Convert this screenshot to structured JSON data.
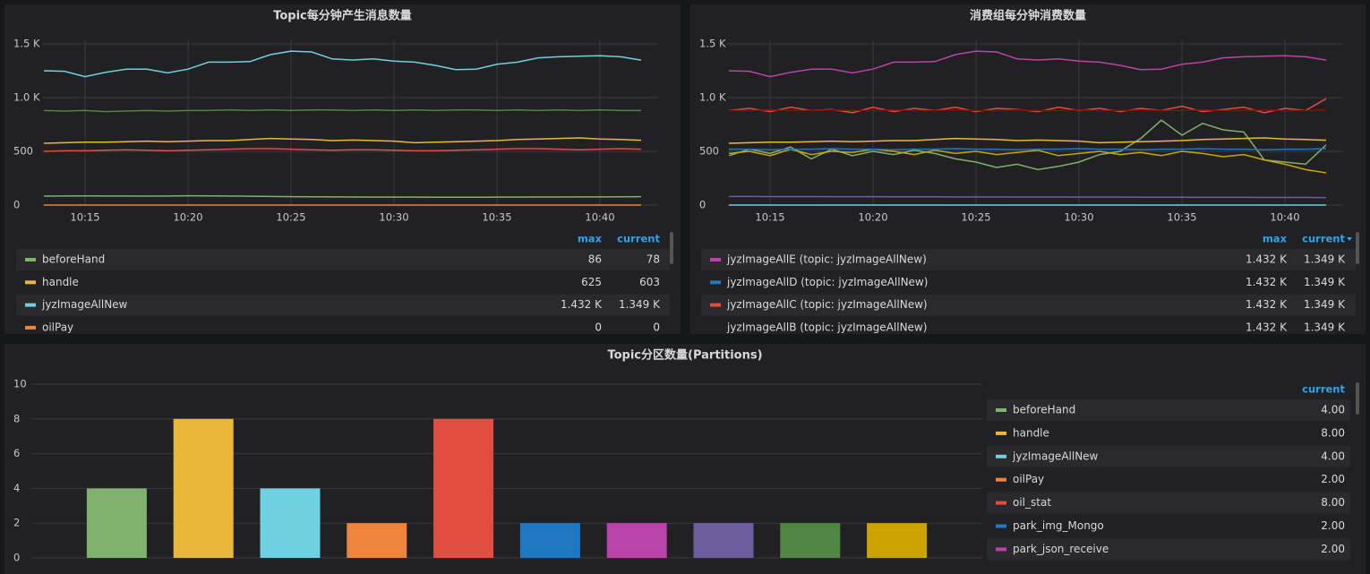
{
  "chart_data": [
    {
      "type": "line",
      "title": "Topic每分钟产生消息数量",
      "x": [
        "10:13",
        "10:14",
        "10:15",
        "10:16",
        "10:17",
        "10:18",
        "10:19",
        "10:20",
        "10:21",
        "10:22",
        "10:23",
        "10:24",
        "10:25",
        "10:26",
        "10:27",
        "10:28",
        "10:29",
        "10:30",
        "10:31",
        "10:32",
        "10:33",
        "10:34",
        "10:35",
        "10:36",
        "10:37",
        "10:38",
        "10:39",
        "10:40",
        "10:41",
        "10:42"
      ],
      "xticks": [
        "10:15",
        "10:20",
        "10:25",
        "10:30",
        "10:35",
        "10:40"
      ],
      "ylim": [
        0,
        1500
      ],
      "yticks": [
        0,
        500,
        {
          "value": 1000,
          "label": "1.0 K"
        },
        {
          "value": 1500,
          "label": "1.5 K"
        }
      ],
      "legend_columns": [
        "max",
        "current"
      ],
      "series": [
        {
          "name": "beforeHand",
          "color": "#7eb26d",
          "max": 86,
          "current": 78,
          "values": [
            83,
            84,
            85,
            84,
            84,
            83,
            84,
            86,
            85,
            84,
            82,
            80,
            78,
            77,
            76,
            75,
            74,
            74,
            74,
            73,
            73,
            73,
            74,
            74,
            75,
            75,
            76,
            76,
            77,
            78
          ]
        },
        {
          "name": "handle",
          "color": "#eab839",
          "max": 625,
          "current": 603,
          "values": [
            575,
            580,
            585,
            585,
            590,
            595,
            590,
            595,
            600,
            600,
            610,
            620,
            615,
            610,
            600,
            605,
            600,
            595,
            580,
            585,
            590,
            595,
            600,
            610,
            615,
            620,
            625,
            615,
            610,
            603
          ]
        },
        {
          "name": "jyzImageAllNew",
          "color": "#6ed0e0",
          "max": {
            "value": 1432,
            "label": "1.432 K"
          },
          "current": {
            "value": 1349,
            "label": "1.349 K"
          },
          "values": [
            1250,
            1245,
            1195,
            1235,
            1265,
            1265,
            1230,
            1265,
            1330,
            1330,
            1335,
            1400,
            1432,
            1425,
            1360,
            1350,
            1360,
            1340,
            1330,
            1300,
            1260,
            1265,
            1310,
            1330,
            1370,
            1380,
            1385,
            1390,
            1380,
            1349
          ]
        },
        {
          "name": "oilPay",
          "color": "#ef843c",
          "max": 0,
          "current": 0,
          "values": [
            0,
            0,
            0,
            0,
            0,
            0,
            0,
            0,
            0,
            0,
            0,
            0,
            0,
            0,
            0,
            0,
            0,
            0,
            0,
            0,
            0,
            0,
            0,
            0,
            0,
            0,
            0,
            0,
            0,
            0
          ]
        },
        {
          "color": "#e24d42",
          "values": [
            500,
            505,
            505,
            510,
            515,
            510,
            505,
            510,
            515,
            520,
            525,
            525,
            520,
            515,
            510,
            515,
            515,
            510,
            505,
            505,
            510,
            515,
            520,
            525,
            525,
            520,
            515,
            520,
            525,
            520
          ]
        },
        {
          "color": "#508642",
          "values": [
            880,
            875,
            880,
            870,
            875,
            880,
            875,
            880,
            880,
            885,
            880,
            885,
            880,
            885,
            885,
            880,
            885,
            880,
            885,
            880,
            885,
            885,
            880,
            885,
            880,
            885,
            880,
            885,
            880,
            880
          ]
        }
      ]
    },
    {
      "type": "line",
      "title": "消费组每分钟消费数量",
      "x": [
        "10:13",
        "10:14",
        "10:15",
        "10:16",
        "10:17",
        "10:18",
        "10:19",
        "10:20",
        "10:21",
        "10:22",
        "10:23",
        "10:24",
        "10:25",
        "10:26",
        "10:27",
        "10:28",
        "10:29",
        "10:30",
        "10:31",
        "10:32",
        "10:33",
        "10:34",
        "10:35",
        "10:36",
        "10:37",
        "10:38",
        "10:39",
        "10:40",
        "10:41",
        "10:42"
      ],
      "xticks": [
        "10:15",
        "10:20",
        "10:25",
        "10:30",
        "10:35",
        "10:40"
      ],
      "ylim": [
        0,
        1500
      ],
      "yticks": [
        0,
        500,
        {
          "value": 1000,
          "label": "1.0 K"
        },
        {
          "value": 1500,
          "label": "1.5 K"
        }
      ],
      "legend_columns": [
        "max",
        "current"
      ],
      "series": [
        {
          "name": "jyzImageAllE (topic: jyzImageAllNew)",
          "color": "#ba43a9",
          "max": {
            "value": 1432,
            "label": "1.432 K"
          },
          "current": {
            "value": 1349,
            "label": "1.349 K"
          },
          "values": [
            1250,
            1245,
            1195,
            1235,
            1265,
            1265,
            1230,
            1265,
            1330,
            1330,
            1335,
            1400,
            1432,
            1425,
            1360,
            1350,
            1360,
            1340,
            1330,
            1300,
            1260,
            1265,
            1310,
            1330,
            1370,
            1380,
            1385,
            1390,
            1380,
            1349
          ]
        },
        {
          "name": "jyzImageAllD (topic: jyzImageAllNew)",
          "color": "#1f78c1",
          "max": {
            "value": 1432,
            "label": "1.432 K"
          },
          "current": {
            "value": 1349,
            "label": "1.349 K"
          }
        },
        {
          "name": "jyzImageAllC (topic: jyzImageAllNew)",
          "color": "#e24d42",
          "max": {
            "value": 1432,
            "label": "1.432 K"
          },
          "current": {
            "value": 1349,
            "label": "1.349 K"
          }
        },
        {
          "name": "jyzImageAllB (topic: jyzImageAllNew)",
          "max": {
            "value": 1432,
            "label": "1.432 K"
          },
          "current": {
            "value": 1349,
            "label": "1.349 K"
          }
        },
        {
          "color": "#890f02",
          "values": [
            880,
            880,
            885,
            880,
            880,
            885,
            880,
            880,
            885,
            880,
            880,
            885,
            880,
            880,
            885,
            880,
            880,
            885,
            880,
            880,
            885,
            880,
            880,
            885,
            880,
            880,
            885,
            880,
            880,
            885
          ]
        },
        {
          "color": "#e24d42",
          "values": [
            880,
            900,
            870,
            910,
            880,
            890,
            860,
            910,
            870,
            900,
            880,
            910,
            870,
            900,
            890,
            870,
            910,
            880,
            900,
            870,
            900,
            880,
            920,
            870,
            890,
            910,
            860,
            900,
            880,
            990
          ]
        },
        {
          "color": "#1f78c1",
          "values": [
            520,
            520,
            515,
            520,
            520,
            525,
            520,
            520,
            515,
            520,
            520,
            525,
            520,
            520,
            515,
            520,
            520,
            525,
            520,
            520,
            515,
            520,
            520,
            525,
            520,
            520,
            515,
            520,
            520,
            525
          ]
        },
        {
          "color": "#eab839",
          "values": [
            575,
            580,
            585,
            585,
            590,
            595,
            590,
            595,
            600,
            600,
            610,
            620,
            615,
            610,
            600,
            605,
            600,
            595,
            580,
            585,
            590,
            595,
            600,
            610,
            615,
            620,
            625,
            615,
            610,
            603
          ]
        },
        {
          "color": "#cca300",
          "values": [
            480,
            500,
            460,
            520,
            470,
            500,
            490,
            520,
            500,
            470,
            510,
            480,
            500,
            470,
            490,
            510,
            460,
            480,
            500,
            470,
            490,
            460,
            500,
            480,
            450,
            470,
            420,
            380,
            330,
            300
          ]
        },
        {
          "color": "#7eb26d",
          "values": [
            460,
            520,
            480,
            540,
            430,
            520,
            460,
            500,
            470,
            510,
            480,
            430,
            400,
            350,
            380,
            330,
            360,
            400,
            470,
            500,
            620,
            790,
            650,
            760,
            700,
            680,
            420,
            400,
            380,
            560
          ]
        },
        {
          "color": "#705da0",
          "values": [
            80,
            80,
            79,
            79,
            79,
            78,
            78,
            78,
            77,
            77,
            77,
            76,
            76,
            76,
            75,
            75,
            75,
            74,
            74,
            74,
            73,
            73,
            73,
            72,
            72,
            72,
            71,
            71,
            71,
            70
          ]
        },
        {
          "color": "#6ed0e0",
          "values": [
            0,
            0,
            0,
            0,
            0,
            0,
            0,
            0,
            0,
            0,
            0,
            0,
            0,
            0,
            0,
            0,
            0,
            0,
            0,
            0,
            0,
            0,
            0,
            0,
            0,
            0,
            0,
            0,
            0,
            0
          ]
        }
      ]
    },
    {
      "type": "bar",
      "title": "Topic分区数量(Partitions)",
      "ylim": [
        0,
        10
      ],
      "yticks": [
        0,
        2,
        4,
        6,
        8,
        10
      ],
      "legend_columns": [
        "current"
      ],
      "series": [
        {
          "name": "beforeHand",
          "color": "#7eb26d",
          "values": [
            4
          ],
          "value_labels": [
            "4.00"
          ]
        },
        {
          "name": "handle",
          "color": "#eab839",
          "values": [
            8
          ],
          "value_labels": [
            "8.00"
          ]
        },
        {
          "name": "jyzImageAllNew",
          "color": "#6ed0e0",
          "values": [
            4
          ],
          "value_labels": [
            "4.00"
          ]
        },
        {
          "name": "oilPay",
          "color": "#ef843c",
          "values": [
            2
          ],
          "value_labels": [
            "2.00"
          ]
        },
        {
          "name": "oil_stat",
          "color": "#e24d42",
          "values": [
            8
          ],
          "value_labels": [
            "8.00"
          ]
        },
        {
          "name": "park_img_Mongo",
          "color": "#1f78c1",
          "values": [
            2
          ],
          "value_labels": [
            "2.00"
          ]
        },
        {
          "name": "park_json_receive",
          "color": "#ba43a9",
          "values": [
            2
          ],
          "value_labels": [
            "2.00"
          ]
        },
        {
          "color": "#705da0",
          "values": [
            2
          ]
        },
        {
          "color": "#508642",
          "values": [
            2
          ]
        },
        {
          "color": "#cca300",
          "values": [
            2
          ]
        }
      ]
    }
  ]
}
